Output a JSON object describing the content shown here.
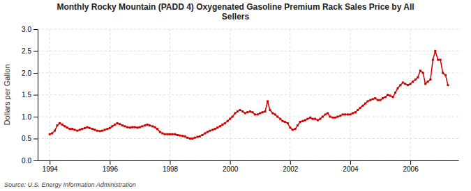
{
  "chart_data": {
    "type": "line",
    "title": "Monthly Rocky Mountain (PADD 4) Oxygenated Gasoline Premium Rack Sales Price by All\nSellers",
    "y_label": "Dollars per Gallon",
    "annotations": [
      "Source: U.S. Energy Information Administration"
    ],
    "color": "#CC0000",
    "marker": "square",
    "line_style": "solid",
    "grid": true,
    "xlim": [
      1993.6,
      2007.6
    ],
    "xticks": [
      1994,
      1996,
      1998,
      2000,
      2002,
      2004,
      2006
    ],
    "ylim": [
      0.0,
      3.0
    ],
    "yticks": [
      {
        "value": 0.0,
        "label": "0.0"
      },
      0.5,
      {
        "value": 1.0,
        "label": "1.0"
      },
      1.5,
      {
        "value": 2.0,
        "label": "2.0"
      },
      2.5,
      {
        "value": 3.0,
        "label": "3.0"
      }
    ],
    "x": [
      1994.0,
      1994.08,
      1994.17,
      1994.25,
      1994.33,
      1994.42,
      1994.5,
      1994.58,
      1994.67,
      1994.75,
      1994.83,
      1994.92,
      1995.0,
      1995.08,
      1995.17,
      1995.25,
      1995.33,
      1995.42,
      1995.5,
      1995.58,
      1995.67,
      1995.75,
      1995.83,
      1995.92,
      1996.0,
      1996.08,
      1996.17,
      1996.25,
      1996.33,
      1996.42,
      1996.5,
      1996.58,
      1996.67,
      1996.75,
      1996.83,
      1996.92,
      1997.0,
      1997.08,
      1997.17,
      1997.25,
      1997.33,
      1997.42,
      1997.5,
      1997.58,
      1997.67,
      1997.75,
      1997.83,
      1997.92,
      1998.0,
      1998.08,
      1998.17,
      1998.25,
      1998.33,
      1998.42,
      1998.5,
      1998.58,
      1998.67,
      1998.75,
      1998.83,
      1998.92,
      1999.0,
      1999.08,
      1999.17,
      1999.25,
      1999.33,
      1999.42,
      1999.5,
      1999.58,
      1999.67,
      1999.75,
      1999.83,
      1999.92,
      2000.0,
      2000.08,
      2000.17,
      2000.25,
      2000.33,
      2000.42,
      2000.5,
      2000.58,
      2000.67,
      2000.75,
      2000.83,
      2000.92,
      2001.0,
      2001.08,
      2001.17,
      2001.25,
      2001.33,
      2001.42,
      2001.5,
      2001.58,
      2001.67,
      2001.75,
      2001.83,
      2001.92,
      2002.0,
      2002.08,
      2002.17,
      2002.25,
      2002.33,
      2002.42,
      2002.5,
      2002.58,
      2002.67,
      2002.75,
      2002.83,
      2002.92,
      2003.0,
      2003.08,
      2003.17,
      2003.25,
      2003.33,
      2003.42,
      2003.5,
      2003.58,
      2003.67,
      2003.75,
      2003.83,
      2003.92,
      2004.0,
      2004.08,
      2004.17,
      2004.25,
      2004.33,
      2004.42,
      2004.5,
      2004.58,
      2004.67,
      2004.75,
      2004.83,
      2004.92,
      2005.0,
      2005.08,
      2005.17,
      2005.25,
      2005.33,
      2005.42,
      2005.5,
      2005.58,
      2005.67,
      2005.75,
      2005.83,
      2005.92,
      2006.0,
      2006.08,
      2006.17,
      2006.25,
      2006.33,
      2006.42,
      2006.5,
      2006.58,
      2006.67,
      2006.75,
      2006.83,
      2006.92,
      2007.0,
      2007.08,
      2007.17,
      2007.25
    ],
    "values": [
      0.6,
      0.62,
      0.68,
      0.8,
      0.85,
      0.82,
      0.78,
      0.75,
      0.72,
      0.72,
      0.7,
      0.68,
      0.7,
      0.72,
      0.74,
      0.76,
      0.74,
      0.72,
      0.7,
      0.68,
      0.67,
      0.68,
      0.7,
      0.72,
      0.74,
      0.78,
      0.82,
      0.85,
      0.83,
      0.8,
      0.78,
      0.76,
      0.75,
      0.76,
      0.76,
      0.75,
      0.76,
      0.78,
      0.8,
      0.82,
      0.8,
      0.78,
      0.76,
      0.72,
      0.65,
      0.62,
      0.6,
      0.6,
      0.6,
      0.6,
      0.6,
      0.58,
      0.57,
      0.56,
      0.55,
      0.52,
      0.5,
      0.5,
      0.52,
      0.54,
      0.55,
      0.58,
      0.62,
      0.65,
      0.68,
      0.7,
      0.72,
      0.75,
      0.78,
      0.82,
      0.85,
      0.9,
      0.95,
      1.0,
      1.08,
      1.12,
      1.15,
      1.12,
      1.08,
      1.1,
      1.12,
      1.1,
      1.05,
      1.05,
      1.08,
      1.1,
      1.12,
      1.35,
      1.15,
      1.08,
      1.05,
      1.0,
      0.95,
      0.9,
      0.88,
      0.85,
      0.75,
      0.7,
      0.72,
      0.8,
      0.88,
      0.9,
      0.92,
      0.95,
      0.98,
      0.95,
      0.95,
      0.92,
      0.95,
      1.0,
      1.05,
      1.08,
      1.0,
      0.98,
      0.98,
      1.0,
      1.02,
      1.05,
      1.05,
      1.05,
      1.05,
      1.08,
      1.1,
      1.15,
      1.2,
      1.25,
      1.3,
      1.35,
      1.38,
      1.4,
      1.42,
      1.38,
      1.38,
      1.42,
      1.45,
      1.5,
      1.48,
      1.45,
      1.55,
      1.65,
      1.72,
      1.78,
      1.75,
      1.72,
      1.75,
      1.8,
      1.85,
      1.9,
      2.05,
      2.0,
      1.75,
      1.8,
      1.85,
      2.3,
      2.5,
      2.3,
      2.3,
      2.0,
      1.95,
      1.72
    ]
  }
}
